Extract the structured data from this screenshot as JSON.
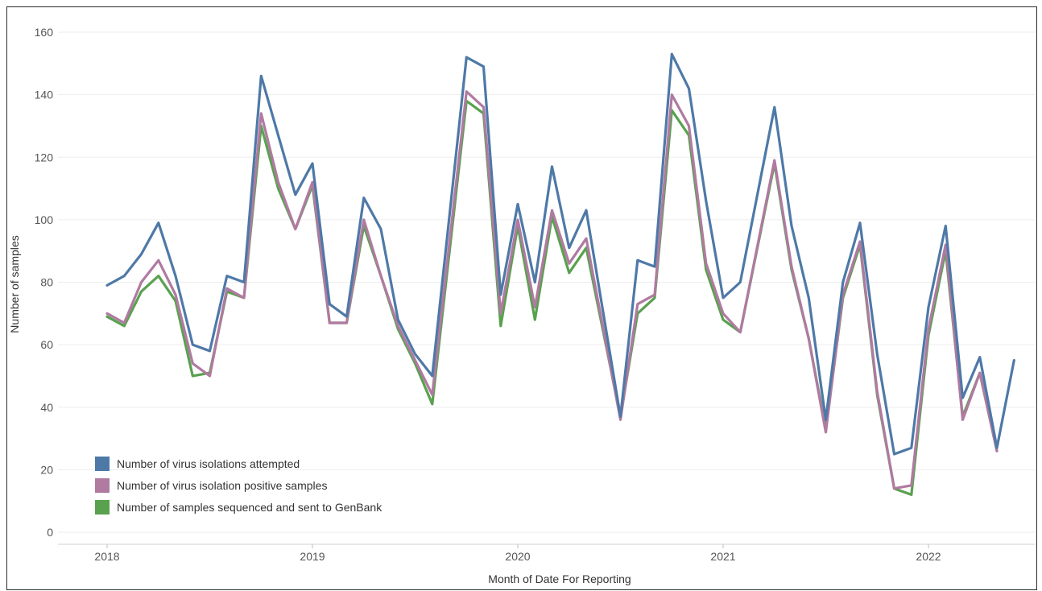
{
  "chart_data": {
    "type": "line",
    "xlabel": "Month of Date For Reporting",
    "ylabel": "Number of samples",
    "ylim": [
      0,
      160
    ],
    "yticks": [
      0,
      20,
      40,
      60,
      80,
      100,
      120,
      140,
      160
    ],
    "xticks": [
      "2018",
      "2019",
      "2020",
      "2021",
      "2022"
    ],
    "grid": true,
    "legend_position": "bottom-left",
    "x": [
      "2018-01",
      "2018-02",
      "2018-03",
      "2018-04",
      "2018-05",
      "2018-06",
      "2018-07",
      "2018-08",
      "2018-09",
      "2018-10",
      "2018-11",
      "2018-12",
      "2019-01",
      "2019-02",
      "2019-03",
      "2019-04",
      "2019-05",
      "2019-06",
      "2019-07",
      "2019-08",
      "2019-09",
      "2019-10",
      "2019-11",
      "2019-12",
      "2020-01",
      "2020-02",
      "2020-03",
      "2020-04",
      "2020-05",
      "2020-06",
      "2020-07",
      "2020-08",
      "2020-09",
      "2020-10",
      "2020-11",
      "2020-12",
      "2021-01",
      "2021-02",
      "2021-03",
      "2021-04",
      "2021-05",
      "2021-06",
      "2021-07",
      "2021-08",
      "2021-09",
      "2021-10",
      "2021-11",
      "2021-12",
      "2022-01",
      "2022-02",
      "2022-03",
      "2022-04",
      "2022-05",
      "2022-06"
    ],
    "series": [
      {
        "name": "Number of virus isolations attempted",
        "color": "#4e79a7",
        "values": [
          79,
          82,
          89,
          99,
          82,
          60,
          58,
          82,
          80,
          146,
          127,
          108,
          118,
          73,
          69,
          107,
          97,
          68,
          57,
          50,
          null,
          152,
          149,
          76,
          105,
          80,
          117,
          91,
          103,
          null,
          37,
          87,
          85,
          153,
          142,
          106,
          75,
          80,
          null,
          136,
          98,
          75,
          36,
          80,
          99,
          57,
          25,
          27,
          72,
          98,
          43,
          56,
          27,
          55
        ]
      },
      {
        "name": "Number of virus isolation positive samples",
        "color": "#b07aa1",
        "values": [
          70,
          67,
          80,
          87,
          76,
          54,
          50,
          78,
          75,
          134,
          112,
          97,
          112,
          67,
          67,
          100,
          82,
          66,
          55,
          44,
          null,
          141,
          136,
          70,
          100,
          72,
          103,
          86,
          94,
          null,
          36,
          73,
          76,
          140,
          130,
          86,
          70,
          64,
          null,
          119,
          85,
          62,
          32,
          76,
          93,
          45,
          14,
          15,
          65,
          92,
          36,
          51,
          26,
          null
        ]
      },
      {
        "name": "Number of samples sequenced and sent to GenBank",
        "color": "#59a14f",
        "values": [
          69,
          66,
          77,
          82,
          74,
          50,
          51,
          77,
          75,
          130,
          110,
          97,
          111,
          67,
          67,
          98,
          82,
          65,
          54,
          41,
          null,
          138,
          134,
          66,
          98,
          68,
          101,
          83,
          91,
          null,
          37,
          70,
          75,
          135,
          127,
          84,
          68,
          64,
          null,
          118,
          84,
          62,
          33,
          75,
          92,
          44,
          14,
          12,
          63,
          90,
          37,
          51,
          26,
          null
        ]
      }
    ]
  }
}
